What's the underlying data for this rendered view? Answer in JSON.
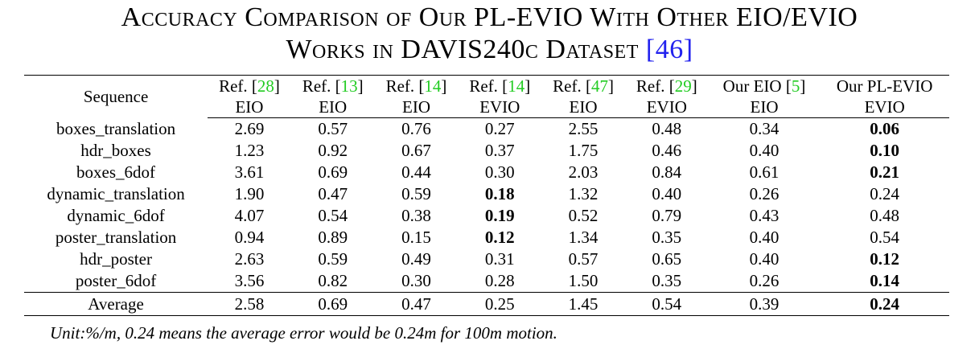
{
  "caption": {
    "line1": "Accuracy Comparison of Our PL-EVIO With Other EIO/EVIO",
    "line2_text": "Works in DAVIS240c Dataset ",
    "line2_ref": "[46]"
  },
  "table": {
    "sequence_header": "Sequence",
    "columns": [
      {
        "ref_prefix": "Ref. [",
        "ref_num": "28",
        "ref_suffix": "]",
        "type": "EIO"
      },
      {
        "ref_prefix": "Ref. [",
        "ref_num": "13",
        "ref_suffix": "]",
        "type": "EIO"
      },
      {
        "ref_prefix": "Ref. [",
        "ref_num": "14",
        "ref_suffix": "]",
        "type": "EIO"
      },
      {
        "ref_prefix": "Ref. [",
        "ref_num": "14",
        "ref_suffix": "]",
        "type": "EVIO"
      },
      {
        "ref_prefix": "Ref. [",
        "ref_num": "47",
        "ref_suffix": "]",
        "type": "EIO"
      },
      {
        "ref_prefix": "Ref. [",
        "ref_num": "29",
        "ref_suffix": "]",
        "type": "EVIO"
      },
      {
        "ref_prefix": "Our EIO [",
        "ref_num": "5",
        "ref_suffix": "]",
        "type": "EIO"
      },
      {
        "ref_prefix": "Our PL-EVIO",
        "ref_num": "",
        "ref_suffix": "",
        "type": "EVIO"
      }
    ],
    "rows": [
      {
        "sequence": "boxes_translation",
        "values": [
          "2.69",
          "0.57",
          "0.76",
          "0.27",
          "2.55",
          "0.48",
          "0.34",
          "0.06"
        ],
        "bold": [
          7
        ]
      },
      {
        "sequence": "hdr_boxes",
        "values": [
          "1.23",
          "0.92",
          "0.67",
          "0.37",
          "1.75",
          "0.46",
          "0.40",
          "0.10"
        ],
        "bold": [
          7
        ]
      },
      {
        "sequence": "boxes_6dof",
        "values": [
          "3.61",
          "0.69",
          "0.44",
          "0.30",
          "2.03",
          "0.84",
          "0.61",
          "0.21"
        ],
        "bold": [
          7
        ]
      },
      {
        "sequence": "dynamic_translation",
        "values": [
          "1.90",
          "0.47",
          "0.59",
          "0.18",
          "1.32",
          "0.40",
          "0.26",
          "0.24"
        ],
        "bold": [
          3
        ]
      },
      {
        "sequence": "dynamic_6dof",
        "values": [
          "4.07",
          "0.54",
          "0.38",
          "0.19",
          "0.52",
          "0.79",
          "0.43",
          "0.48"
        ],
        "bold": [
          3
        ]
      },
      {
        "sequence": "poster_translation",
        "values": [
          "0.94",
          "0.89",
          "0.15",
          "0.12",
          "1.34",
          "0.35",
          "0.40",
          "0.54"
        ],
        "bold": [
          3
        ]
      },
      {
        "sequence": "hdr_poster",
        "values": [
          "2.63",
          "0.59",
          "0.49",
          "0.31",
          "0.57",
          "0.65",
          "0.40",
          "0.12"
        ],
        "bold": [
          7
        ]
      },
      {
        "sequence": "poster_6dof",
        "values": [
          "3.56",
          "0.82",
          "0.30",
          "0.28",
          "1.50",
          "0.35",
          "0.26",
          "0.14"
        ],
        "bold": [
          7
        ]
      }
    ],
    "average": {
      "sequence": "Average",
      "values": [
        "2.58",
        "0.69",
        "0.47",
        "0.25",
        "1.45",
        "0.54",
        "0.39",
        "0.24"
      ],
      "bold": [
        7
      ]
    }
  },
  "note": "Unit:%/m, 0.24 means the average error would be 0.24m for 100m motion."
}
